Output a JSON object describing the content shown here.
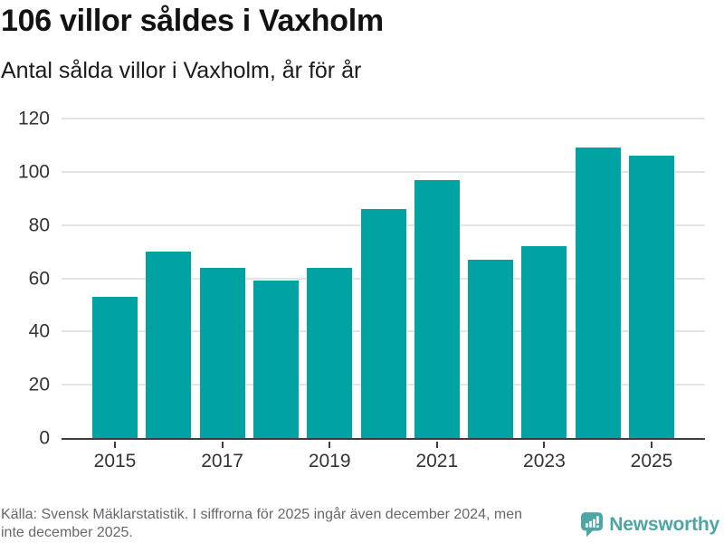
{
  "header": {
    "title": "106 villor såldes i Vaxholm",
    "subtitle": "Antal sålda villor i Vaxholm, år för år"
  },
  "chart_data": {
    "type": "bar",
    "title": "106 villor såldes i Vaxholm",
    "subtitle": "Antal sålda villor i Vaxholm, år för år",
    "categories": [
      2015,
      2016,
      2017,
      2018,
      2019,
      2020,
      2021,
      2022,
      2023,
      2024,
      2025
    ],
    "values": [
      53,
      70,
      64,
      59,
      64,
      86,
      97,
      67,
      72,
      109,
      106
    ],
    "xlabel": "",
    "ylabel": "",
    "ylim": [
      0,
      120
    ],
    "yticks": [
      0,
      20,
      40,
      60,
      80,
      100,
      120
    ],
    "xticks_shown": [
      2015,
      2017,
      2019,
      2021,
      2023,
      2025
    ],
    "bar_color": "#00a2a2",
    "grid": true,
    "legend": "none"
  },
  "footer": {
    "source_lines": [
      "Källa: Svensk Mäklarstatistik. I siffrorna för 2025 ingår även december 2024, men",
      "inte december 2025."
    ]
  },
  "branding": {
    "name": "Newsworthy",
    "icon": "newsworthy-speech-bubble-chart-icon",
    "color": "#4da5a6"
  },
  "colors": {
    "bar": "#00a2a2",
    "grid": "#e4e4e4",
    "axis": "#3d3d3d",
    "tick_label": "#333333",
    "title": "#121212",
    "footer_text": "#67676c",
    "background": "#ffffff",
    "brand": "#4da5a6"
  }
}
